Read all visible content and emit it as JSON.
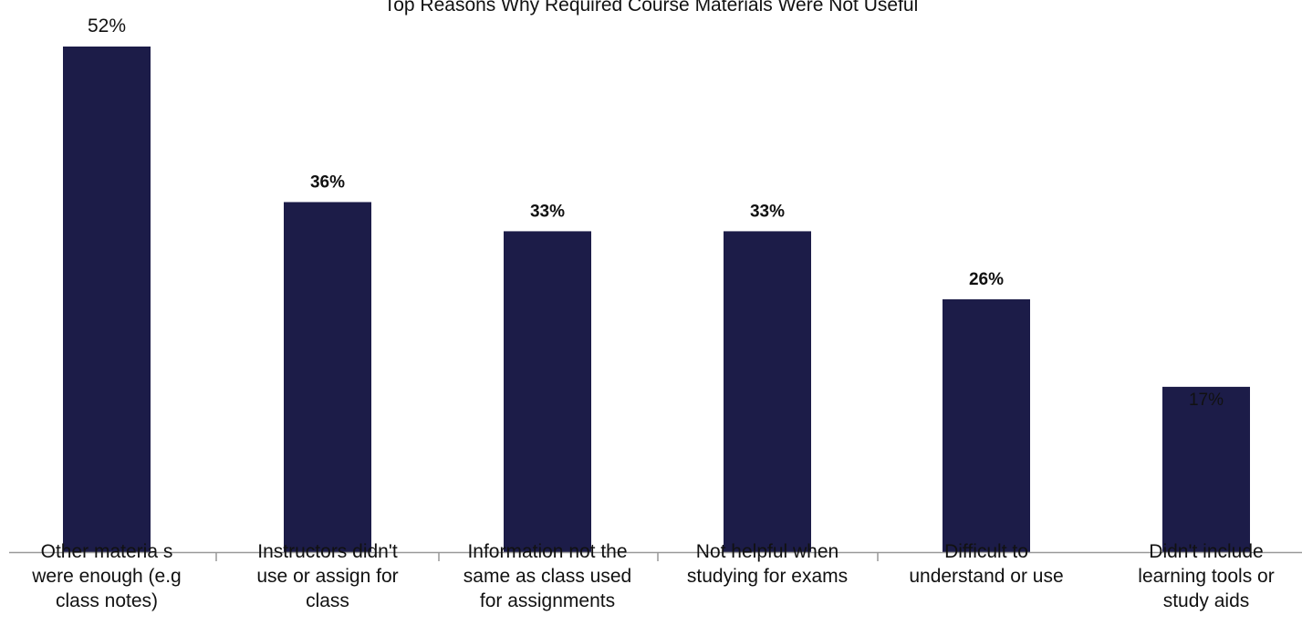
{
  "chart_data": {
    "type": "bar",
    "title": "Top Reasons Why Required Course Materials Were Not Useful",
    "categories": [
      "Other materials were enough (e.g class notes)",
      "Instructors didn't use or assign for class",
      "Information not the same as class used for assignments",
      "Not helpful when studying for exams",
      "Difficult to understand or use",
      "Didn't include learning tools or study aids"
    ],
    "category_lines": [
      [
        "Other materia s",
        "were enough (e.g",
        "class notes)"
      ],
      [
        "Instructors didn't",
        "use or assign for",
        "class"
      ],
      [
        "Information not the",
        "same as class used",
        "for assignments"
      ],
      [
        "Not helpful when",
        "studying for exams"
      ],
      [
        "Difficult to",
        "understand or use"
      ],
      [
        "Didn't include",
        "learning tools or",
        "study aids"
      ]
    ],
    "values": [
      52,
      36,
      33,
      33,
      26,
      17
    ],
    "data_labels": [
      "52%",
      "36%",
      "33%",
      "33%",
      "26%",
      "17%"
    ],
    "ylim": [
      0,
      55
    ],
    "bar_color": "#1c1c48",
    "axis_color": "#999999",
    "grid": false,
    "legend": "none"
  }
}
